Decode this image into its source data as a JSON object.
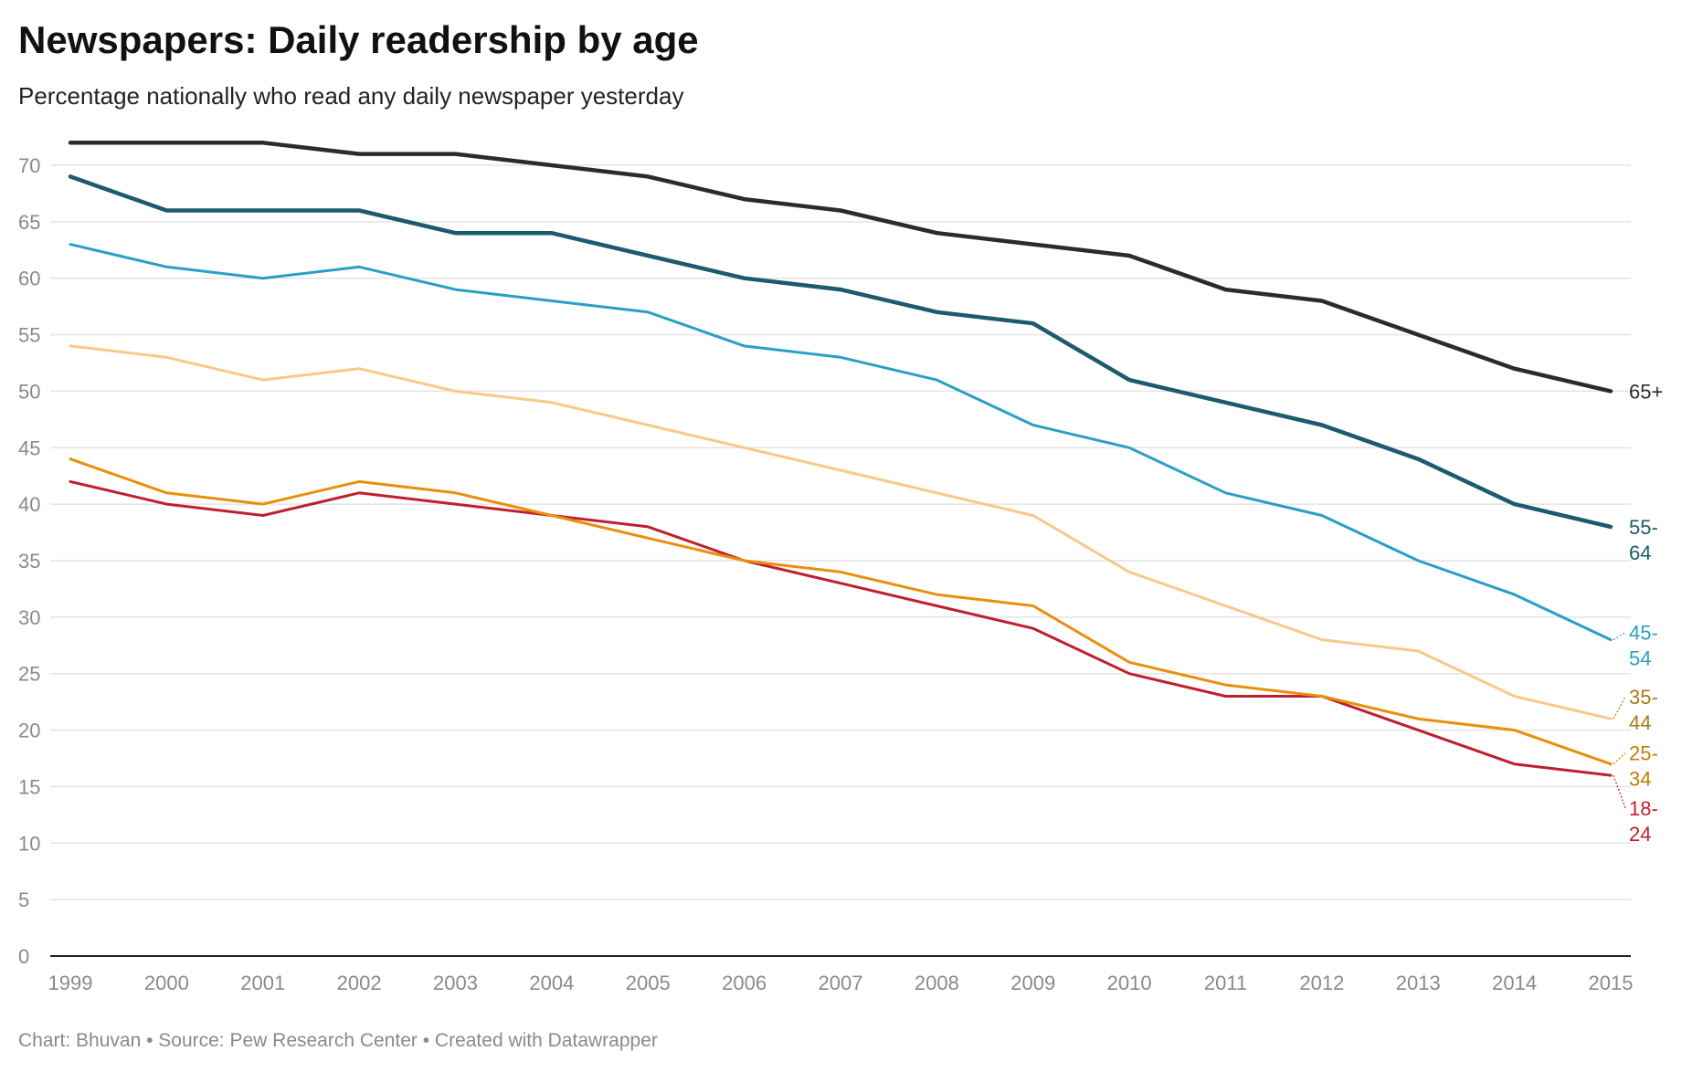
{
  "chart_data": {
    "type": "line",
    "title": "Newspapers: Daily readership by age",
    "subtitle": "Percentage nationally who read any daily newspaper yesterday",
    "footer": "Chart: Bhuvan • Source: Pew Research Center • Created with Datawrapper",
    "x": [
      "1999",
      "2000",
      "2001",
      "2002",
      "2003",
      "2004",
      "2005",
      "2006",
      "2007",
      "2008",
      "2009",
      "2010",
      "2011",
      "2012",
      "2013",
      "2014",
      "2015"
    ],
    "ylim": [
      0,
      70
    ],
    "yticks": [
      0,
      5,
      10,
      15,
      20,
      25,
      30,
      35,
      40,
      45,
      50,
      55,
      60,
      65,
      70
    ],
    "grid": true,
    "legend": "direct labels at line ends",
    "series": [
      {
        "name": "65+",
        "label_lines": [
          "65+"
        ],
        "color": "#2b2b2b",
        "values": [
          72,
          72,
          72,
          71,
          71,
          70,
          69,
          67,
          66,
          64,
          63,
          62,
          59,
          58,
          55,
          52,
          50
        ]
      },
      {
        "name": "55-64",
        "label_lines": [
          "55-",
          "64"
        ],
        "color": "#1c5a6d",
        "values": [
          69,
          66,
          66,
          66,
          64,
          64,
          62,
          60,
          59,
          57,
          56,
          51,
          49,
          47,
          44,
          40,
          38
        ]
      },
      {
        "name": "45-54",
        "label_lines": [
          "45-",
          "54"
        ],
        "color": "#2a9fc6",
        "values": [
          63,
          61,
          60,
          61,
          59,
          58,
          57,
          54,
          53,
          51,
          47,
          45,
          41,
          39,
          35,
          32,
          28
        ]
      },
      {
        "name": "35-44",
        "label_lines": [
          "35-",
          "44"
        ],
        "color": "#f7c98a",
        "text_color": "#a87a14",
        "values": [
          54,
          53,
          51,
          52,
          50,
          49,
          47,
          45,
          43,
          41,
          39,
          34,
          31,
          28,
          27,
          23,
          21
        ]
      },
      {
        "name": "25-34",
        "label_lines": [
          "25-",
          "34"
        ],
        "color": "#e8900c",
        "text_color": "#c77a06",
        "values": [
          44,
          41,
          40,
          42,
          41,
          39,
          37,
          35,
          34,
          32,
          31,
          26,
          24,
          23,
          21,
          20,
          17
        ]
      },
      {
        "name": "18-24",
        "label_lines": [
          "18-",
          "24"
        ],
        "color": "#c01f2f",
        "values": [
          42,
          40,
          39,
          41,
          40,
          39,
          38,
          35,
          33,
          31,
          29,
          25,
          23,
          23,
          20,
          17,
          16
        ]
      }
    ]
  }
}
